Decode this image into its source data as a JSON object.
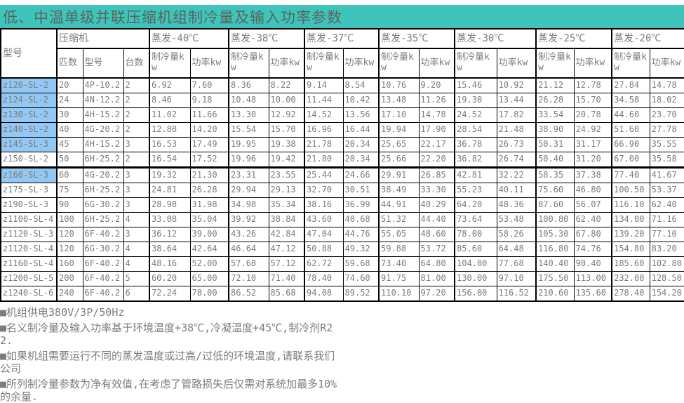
{
  "title": "低、中温单级并联压缩机组制冷量及输入功率参数",
  "colors": {
    "title_bg": "#3ec4ba",
    "row_highlight": "#92c8f3",
    "text_gray": "#7c7c7c",
    "border": "#000000"
  },
  "table": {
    "header": {
      "model": "型号",
      "compressor": "压缩机",
      "hp": "匹数",
      "comp_model": "型号",
      "units": "台数",
      "cooling": "制冷量kw",
      "power": "功率kw",
      "temp_groups": [
        "蒸发-40℃",
        "蒸发-38℃",
        "蒸发-37℃",
        "蒸发-35℃",
        "蒸发-30℃",
        "蒸发-25℃",
        "蒸发-20℃"
      ]
    },
    "rows": [
      {
        "model": "z120-SL-2",
        "highlight": true,
        "hp": "20",
        "comp_model": "4P-10.2",
        "units": "2",
        "values": [
          "6.92",
          "7.60",
          "8.36",
          "8.22",
          "9.14",
          "8.54",
          "10.76",
          "9.20",
          "15.46",
          "10.92",
          "21.12",
          "12.78",
          "27.84",
          "14.78"
        ]
      },
      {
        "model": "z124-SL-2",
        "highlight": true,
        "hp": "24",
        "comp_model": "4N-12.2",
        "units": "2",
        "values": [
          "8.46",
          "9.18",
          "10.48",
          "10.00",
          "11.44",
          "10.42",
          "13.48",
          "11.26",
          "19.30",
          "13.44",
          "26.28",
          "15.70",
          "34.58",
          "18.02"
        ]
      },
      {
        "model": "z130-SL-2",
        "highlight": true,
        "hp": "30",
        "comp_model": "4H-15.2",
        "units": "2",
        "values": [
          "11.02",
          "11.66",
          "13.30",
          "12.92",
          "14.52",
          "13.56",
          "17.10",
          "14.78",
          "24.52",
          "17.82",
          "33.54",
          "20.78",
          "44.60",
          "23.70"
        ]
      },
      {
        "model": "z140-SL-2",
        "highlight": true,
        "hp": "40",
        "comp_model": "4G-20.2",
        "units": "2",
        "values": [
          "12.88",
          "14.20",
          "15.54",
          "15.70",
          "16.96",
          "16.44",
          "19.94",
          "17.90",
          "28.54",
          "21.48",
          "38.90",
          "24.92",
          "51.60",
          "27.78"
        ]
      },
      {
        "model": "z145-SL-3",
        "highlight": true,
        "hp": "45",
        "comp_model": "4H-15.2",
        "units": "3",
        "values": [
          "16.53",
          "17.49",
          "19.95",
          "19.38",
          "21.78",
          "20.34",
          "25.65",
          "22.17",
          "36.78",
          "26.73",
          "50.31",
          "31.17",
          "66.90",
          "35.55"
        ]
      },
      {
        "model": "z150-SL-2",
        "highlight": false,
        "hp": "50",
        "comp_model": "6H-25.2",
        "units": "2",
        "values": [
          "16.54",
          "17.52",
          "19.96",
          "19.42",
          "21.80",
          "20.34",
          "25.66",
          "22.20",
          "36.82",
          "26.74",
          "50.40",
          "31.20",
          "67.00",
          "35.58"
        ]
      },
      {
        "model": "z160-SL-3",
        "highlight": true,
        "hp": "60",
        "comp_model": "4G-20.2",
        "units": "3",
        "values": [
          "19.32",
          "21.30",
          "23.31",
          "23.55",
          "25.44",
          "24.66",
          "29.91",
          "26.85",
          "42.81",
          "32.22",
          "58.35",
          "37.38",
          "77.40",
          "41.67"
        ]
      },
      {
        "model": "z175-SL-3",
        "highlight": false,
        "hp": "75",
        "comp_model": "6H-25.2",
        "units": "3",
        "values": [
          "24.81",
          "26.28",
          "29.94",
          "29.13",
          "32.70",
          "30.51",
          "38.49",
          "33.30",
          "55.23",
          "40.11",
          "75.60",
          "46.80",
          "100.50",
          "53.37"
        ]
      },
      {
        "model": "z190-SL-3",
        "highlight": false,
        "hp": "90",
        "comp_model": "6G-30.2",
        "units": "3",
        "values": [
          "28.98",
          "31.98",
          "34.98",
          "35.34",
          "38.16",
          "36.99",
          "44.91",
          "40.29",
          "64.20",
          "48.36",
          "87.60",
          "56.07",
          "116.10",
          "62.40"
        ]
      },
      {
        "model": "z1100-SL-4",
        "highlight": false,
        "hp": "100",
        "comp_model": "6H-25.2",
        "units": "4",
        "values": [
          "33.08",
          "35.04",
          "39.92",
          "38.84",
          "43.60",
          "40.68",
          "51.32",
          "44.40",
          "73.64",
          "53.48",
          "100.80",
          "62.40",
          "134.00",
          "71.16"
        ]
      },
      {
        "model": "z1120-SL-3",
        "highlight": false,
        "hp": "120",
        "comp_model": "6F-40.2",
        "units": "3",
        "values": [
          "36.12",
          "39.00",
          "43.26",
          "42.84",
          "47.04",
          "44.76",
          "55.05",
          "48.60",
          "78.00",
          "58.26",
          "105.30",
          "67.80",
          "139.20",
          "77.10"
        ]
      },
      {
        "model": "z1120-SL-4",
        "highlight": false,
        "hp": "120",
        "comp_model": "6G-30.2",
        "units": "4",
        "values": [
          "38.64",
          "42.64",
          "46.64",
          "47.12",
          "50.88",
          "49.32",
          "59.88",
          "53.72",
          "85.60",
          "64.48",
          "116.80",
          "74.76",
          "154.80",
          "83.20"
        ]
      },
      {
        "model": "z1160-SL-4",
        "highlight": false,
        "hp": "160",
        "comp_model": "6F-40.2",
        "units": "4",
        "values": [
          "48.16",
          "52.00",
          "57.68",
          "57.12",
          "62.72",
          "59.68",
          "73.40",
          "64.80",
          "104.00",
          "77.68",
          "140.40",
          "90.40",
          "185.60",
          "102.80"
        ]
      },
      {
        "model": "z1200-SL-5",
        "highlight": false,
        "hp": "200",
        "comp_model": "6F-40.2",
        "units": "5",
        "values": [
          "60.20",
          "65.00",
          "72.10",
          "71.40",
          "78.40",
          "74.60",
          "91.75",
          "81.00",
          "130.00",
          "97.10",
          "175.50",
          "113.00",
          "232.00",
          "128.50"
        ]
      },
      {
        "model": "z1240-SL-6",
        "highlight": false,
        "hp": "240",
        "comp_model": "6F-40.2",
        "units": "6",
        "values": [
          "72.24",
          "78.00",
          "86.52",
          "85.68",
          "94.08",
          "89.52",
          "110.10",
          "97.20",
          "156.00",
          "116.52",
          "210.60",
          "135.60",
          "278.40",
          "154.20"
        ]
      }
    ]
  },
  "notes": [
    "■机组供电380V/3P/50Hz",
    "■名义制冷量及输入功率基于环境温度+38℃,冷凝温度+45℃,制冷剂R22.",
    "■如果机组需要运行不同的蒸发温度或过高/过低的环境温度,请联系我们公司",
    "■所列制冷量参数为净有效值,在考虑了管路损失后仅需对系统加最多10%的余量."
  ]
}
